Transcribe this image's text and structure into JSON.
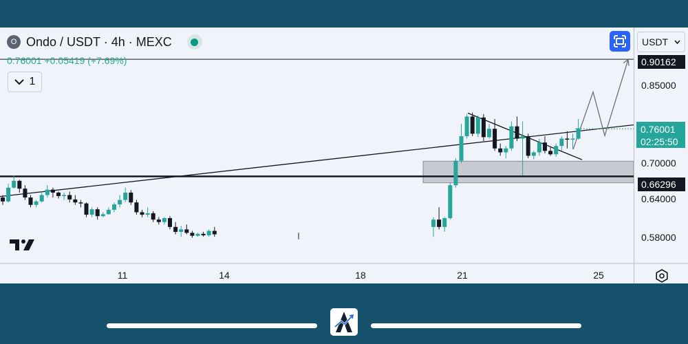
{
  "header": {
    "symbol_logo": "O",
    "title": "Ondo / USDT · 4h · MEXC",
    "ohlc_summary": "0.76001  +0.05419 (+7.69%)",
    "interval_value": "1",
    "currency": "USDT",
    "icons": [
      "live-dot-icon",
      "fullscreen-icon",
      "chevron-down-icon",
      "settings-icon",
      "tradingview-logo-icon"
    ]
  },
  "colors": {
    "up": "#26a69a",
    "down": "#131722",
    "accent": "#2962ff",
    "zone": "#9598a1",
    "background": "#f0f3fa",
    "frame": "#16526c"
  },
  "chart_data": {
    "type": "candlestick",
    "x_ticks": [
      "11",
      "14",
      "18",
      "21",
      "25"
    ],
    "y_ticks": [
      "0.85000",
      "0.70000",
      "0.64000",
      "0.58000"
    ],
    "ylim": [
      0.54,
      0.92
    ],
    "last_price": "0.76001",
    "countdown": "02:25:50",
    "level_top": "0.90162",
    "level_support": "0.66296",
    "support_zone": [
      0.65,
      0.694
    ],
    "candles": [
      [
        0.62,
        0.625,
        0.605,
        0.612
      ],
      [
        0.612,
        0.648,
        0.61,
        0.64
      ],
      [
        0.64,
        0.665,
        0.638,
        0.654
      ],
      [
        0.654,
        0.656,
        0.63,
        0.638
      ],
      [
        0.638,
        0.645,
        0.615,
        0.62
      ],
      [
        0.62,
        0.625,
        0.6,
        0.605
      ],
      [
        0.605,
        0.615,
        0.6,
        0.612
      ],
      [
        0.612,
        0.632,
        0.61,
        0.625
      ],
      [
        0.625,
        0.645,
        0.62,
        0.636
      ],
      [
        0.636,
        0.64,
        0.62,
        0.63
      ],
      [
        0.63,
        0.632,
        0.618,
        0.623
      ],
      [
        0.623,
        0.63,
        0.615,
        0.625
      ],
      [
        0.625,
        0.632,
        0.61,
        0.616
      ],
      [
        0.616,
        0.625,
        0.605,
        0.61
      ],
      [
        0.61,
        0.615,
        0.6,
        0.608
      ],
      [
        0.608,
        0.61,
        0.58,
        0.585
      ],
      [
        0.585,
        0.6,
        0.58,
        0.596
      ],
      [
        0.596,
        0.6,
        0.575,
        0.582
      ],
      [
        0.582,
        0.59,
        0.58,
        0.586
      ],
      [
        0.586,
        0.6,
        0.585,
        0.595
      ],
      [
        0.595,
        0.61,
        0.59,
        0.606
      ],
      [
        0.606,
        0.625,
        0.6,
        0.615
      ],
      [
        0.615,
        0.64,
        0.61,
        0.63
      ],
      [
        0.63,
        0.635,
        0.605,
        0.61
      ],
      [
        0.61,
        0.615,
        0.585,
        0.59
      ],
      [
        0.59,
        0.595,
        0.58,
        0.585
      ],
      [
        0.585,
        0.6,
        0.58,
        0.588
      ],
      [
        0.588,
        0.592,
        0.57,
        0.575
      ],
      [
        0.575,
        0.58,
        0.565,
        0.57
      ],
      [
        0.57,
        0.58,
        0.565,
        0.578
      ],
      [
        0.578,
        0.582,
        0.555,
        0.56
      ],
      [
        0.56,
        0.57,
        0.545,
        0.55
      ],
      [
        0.55,
        0.562,
        0.54,
        0.555
      ],
      [
        0.555,
        0.565,
        0.545,
        0.548
      ],
      [
        0.548,
        0.552,
        0.538,
        0.542
      ],
      [
        0.542,
        0.548,
        0.54,
        0.546
      ],
      [
        0.546,
        0.55,
        0.54,
        0.543
      ],
      [
        0.543,
        0.555,
        0.54,
        0.552
      ],
      [
        0.552,
        0.56,
        0.54,
        0.545
      ],
      [
        0.56,
        0.58,
        0.54,
        0.575
      ],
      [
        0.575,
        0.6,
        0.555,
        0.56
      ],
      [
        0.56,
        0.58,
        0.55,
        0.578
      ],
      [
        0.578,
        0.65,
        0.575,
        0.645
      ],
      [
        0.645,
        0.7,
        0.64,
        0.695
      ],
      [
        0.695,
        0.77,
        0.69,
        0.745
      ],
      [
        0.745,
        0.79,
        0.74,
        0.785
      ],
      [
        0.785,
        0.793,
        0.745,
        0.75
      ],
      [
        0.75,
        0.787,
        0.743,
        0.783
      ],
      [
        0.783,
        0.79,
        0.735,
        0.743
      ],
      [
        0.743,
        0.77,
        0.74,
        0.76
      ],
      [
        0.76,
        0.78,
        0.715,
        0.72
      ],
      [
        0.72,
        0.73,
        0.705,
        0.712
      ],
      [
        0.712,
        0.725,
        0.7,
        0.72
      ],
      [
        0.72,
        0.775,
        0.715,
        0.765
      ],
      [
        0.765,
        0.785,
        0.735,
        0.74
      ],
      [
        0.74,
        0.775,
        0.665,
        0.745
      ],
      [
        0.745,
        0.75,
        0.7,
        0.705
      ],
      [
        0.705,
        0.715,
        0.698,
        0.712
      ],
      [
        0.712,
        0.74,
        0.705,
        0.732
      ],
      [
        0.732,
        0.745,
        0.71,
        0.715
      ],
      [
        0.715,
        0.722,
        0.705,
        0.708
      ],
      [
        0.708,
        0.73,
        0.703,
        0.725
      ],
      [
        0.725,
        0.745,
        0.715,
        0.74
      ],
      [
        0.74,
        0.755,
        0.72,
        0.738
      ],
      [
        0.738,
        0.75,
        0.72,
        0.74
      ],
      [
        0.74,
        0.78,
        0.738,
        0.761
      ]
    ]
  },
  "overlay": {
    "watermark": "A"
  }
}
